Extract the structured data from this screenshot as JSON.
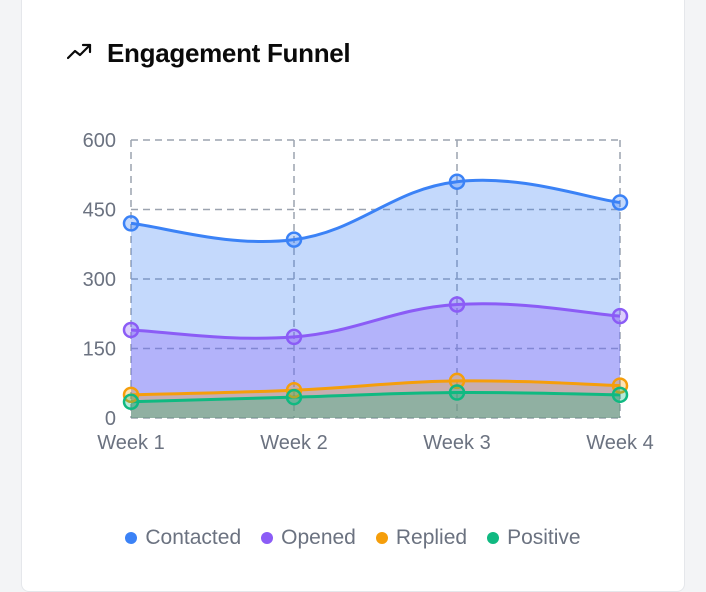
{
  "card": {
    "title": "Engagement Funnel",
    "icon": "trending-up-icon"
  },
  "chart_data": {
    "type": "area",
    "title": "Engagement Funnel",
    "categories": [
      "Week 1",
      "Week 2",
      "Week 3",
      "Week 4"
    ],
    "ylim": [
      0,
      600
    ],
    "yticks": [
      0,
      150,
      300,
      450,
      600
    ],
    "grid": true,
    "legend_position": "bottom",
    "series": [
      {
        "name": "Contacted",
        "values": [
          420,
          385,
          510,
          465
        ],
        "color": "#3b82f6"
      },
      {
        "name": "Opened",
        "values": [
          190,
          175,
          245,
          220
        ],
        "color": "#8b5cf6"
      },
      {
        "name": "Replied",
        "values": [
          50,
          60,
          80,
          70
        ],
        "color": "#f59e0b"
      },
      {
        "name": "Positive",
        "values": [
          35,
          45,
          55,
          50
        ],
        "color": "#10b981"
      }
    ]
  }
}
